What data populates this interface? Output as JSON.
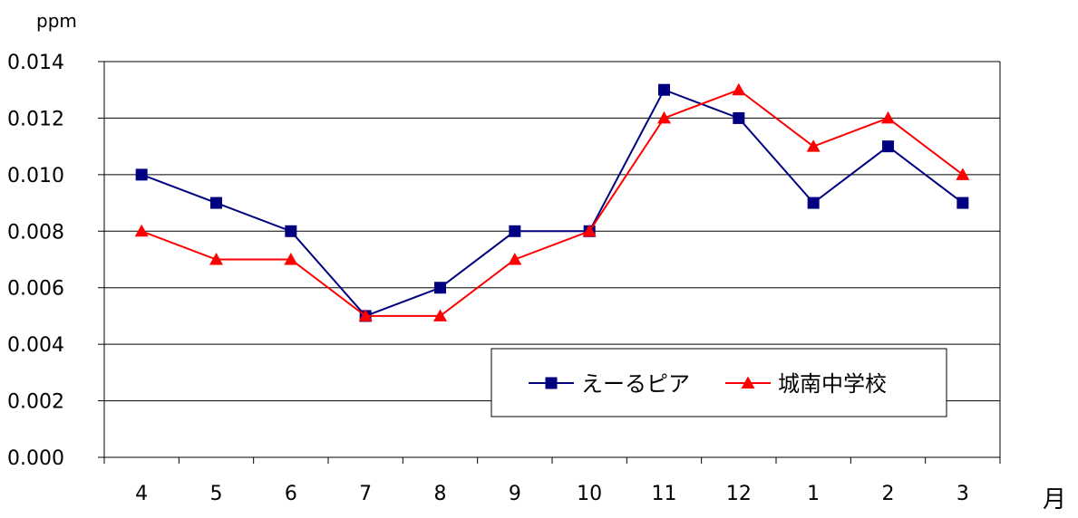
{
  "chart_data": {
    "type": "line",
    "title": "",
    "ylabel": "ppm",
    "xlabel": "月",
    "ylim": [
      0,
      0.014
    ],
    "y_ticks": [
      "0.000",
      "0.002",
      "0.004",
      "0.006",
      "0.008",
      "0.010",
      "0.012",
      "0.014"
    ],
    "y_tick_values": [
      0,
      0.002,
      0.004,
      0.006,
      0.008,
      0.01,
      0.012,
      0.014
    ],
    "categories": [
      "4",
      "5",
      "6",
      "7",
      "8",
      "9",
      "10",
      "11",
      "12",
      "1",
      "2",
      "3"
    ],
    "grid": true,
    "legend_position": "bottom-right",
    "series": [
      {
        "name": "えーるピア",
        "color": "#000080",
        "marker": "square",
        "values": [
          0.01,
          0.009,
          0.008,
          0.005,
          0.006,
          0.008,
          0.008,
          0.013,
          0.012,
          0.009,
          0.011,
          0.009
        ]
      },
      {
        "name": "城南中学校",
        "color": "#ff0000",
        "marker": "triangle",
        "values": [
          0.008,
          0.007,
          0.007,
          0.005,
          0.005,
          0.007,
          0.008,
          0.012,
          0.013,
          0.011,
          0.012,
          0.01
        ]
      }
    ]
  }
}
